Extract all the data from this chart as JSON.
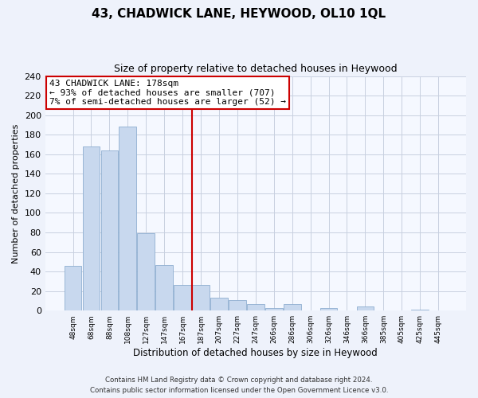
{
  "title": "43, CHADWICK LANE, HEYWOOD, OL10 1QL",
  "subtitle": "Size of property relative to detached houses in Heywood",
  "xlabel": "Distribution of detached houses by size in Heywood",
  "ylabel": "Number of detached properties",
  "bar_labels": [
    "48sqm",
    "68sqm",
    "88sqm",
    "108sqm",
    "127sqm",
    "147sqm",
    "167sqm",
    "187sqm",
    "207sqm",
    "227sqm",
    "247sqm",
    "266sqm",
    "286sqm",
    "306sqm",
    "326sqm",
    "346sqm",
    "366sqm",
    "385sqm",
    "405sqm",
    "425sqm",
    "445sqm"
  ],
  "bar_values": [
    46,
    168,
    164,
    188,
    79,
    47,
    26,
    26,
    13,
    11,
    7,
    3,
    7,
    0,
    3,
    0,
    4,
    0,
    0,
    1,
    0
  ],
  "bar_color": "#c8d8ee",
  "bar_edge_color": "#8eaed0",
  "vline_x": 6.5,
  "vline_color": "#cc0000",
  "annotation_line1": "43 CHADWICK LANE: 178sqm",
  "annotation_line2": "← 93% of detached houses are smaller (707)",
  "annotation_line3": "7% of semi-detached houses are larger (52) →",
  "annotation_box_color": "#ffffff",
  "annotation_box_edge_color": "#cc0000",
  "ylim": [
    0,
    240
  ],
  "yticks": [
    0,
    20,
    40,
    60,
    80,
    100,
    120,
    140,
    160,
    180,
    200,
    220,
    240
  ],
  "footnote1": "Contains HM Land Registry data © Crown copyright and database right 2024.",
  "footnote2": "Contains public sector information licensed under the Open Government Licence v3.0.",
  "background_color": "#eef2fb",
  "plot_bg_color": "#f5f8ff",
  "grid_color": "#c8d0e0"
}
